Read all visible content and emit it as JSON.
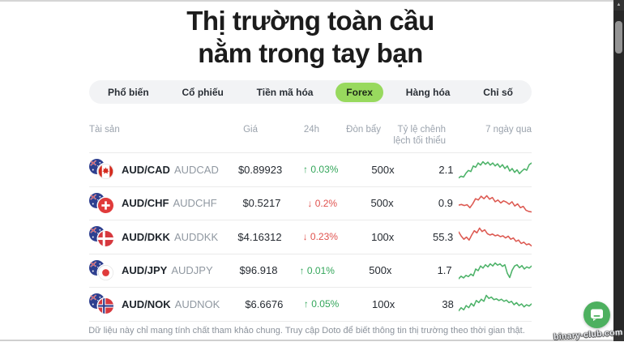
{
  "page": {
    "title_line1": "Thị trường toàn cầu",
    "title_line2": "nằm trong tay bạn",
    "footer": "Dữ liệu này chỉ mang tính chất tham khảo chung. Truy cập Doto để biết thông tin thị trường theo thời gian thật.",
    "watermark": "binary-club.com"
  },
  "tabs": {
    "items": [
      {
        "id": "pho-bien",
        "label": "Phổ biến",
        "active": false
      },
      {
        "id": "co-phieu",
        "label": "Cổ phiếu",
        "active": false
      },
      {
        "id": "tien-ma-hoa",
        "label": "Tiền mã hóa",
        "active": false
      },
      {
        "id": "forex",
        "label": "Forex",
        "active": true
      },
      {
        "id": "hang-hoa",
        "label": "Hàng hóa",
        "active": false
      },
      {
        "id": "chi-so",
        "label": "Chỉ số",
        "active": false
      }
    ]
  },
  "table": {
    "headers": {
      "asset": "Tài sản",
      "price": "Giá",
      "change": "24h",
      "leverage": "Đòn bẩy",
      "spread_line1": "Tỷ lệ chênh",
      "spread_line2": "lệch tối thiểu",
      "week": "7 ngày qua"
    },
    "rows": [
      {
        "pair": "AUD/CAD",
        "code": "AUDCAD",
        "price": "$0.89923",
        "change": "0.03%",
        "direction": "up",
        "leverage": "500x",
        "spread": "2.1",
        "flag_base": "aud",
        "flag_quote": "cad"
      },
      {
        "pair": "AUD/CHF",
        "code": "AUDCHF",
        "price": "$0.5217",
        "change": "0.2%",
        "direction": "down",
        "leverage": "500x",
        "spread": "0.9",
        "flag_base": "aud",
        "flag_quote": "chf"
      },
      {
        "pair": "AUD/DKK",
        "code": "AUDDKK",
        "price": "$4.16312",
        "change": "0.23%",
        "direction": "down",
        "leverage": "100x",
        "spread": "55.3",
        "flag_base": "aud",
        "flag_quote": "dkk"
      },
      {
        "pair": "AUD/JPY",
        "code": "AUDJPY",
        "price": "$96.918",
        "change": "0.01%",
        "direction": "up",
        "leverage": "500x",
        "spread": "1.7",
        "flag_base": "aud",
        "flag_quote": "jpy"
      },
      {
        "pair": "AUD/NOK",
        "code": "AUDNOK",
        "price": "$6.6676",
        "change": "0.05%",
        "direction": "up",
        "leverage": "100x",
        "spread": "38",
        "flag_base": "aud",
        "flag_quote": "nok"
      }
    ]
  },
  "icons": {
    "up_arrow": "↑",
    "down_arrow": "↓",
    "scroll_up_arrow": "▲",
    "scroll_down_arrow": "▼",
    "chat_icon": "chat-bubble",
    "flag_icons": [
      "flag-aud",
      "flag-cad",
      "flag-chf",
      "flag-dkk",
      "flag-jpy",
      "flag-nok"
    ]
  },
  "colors": {
    "up_text": "#33a65a",
    "down_text": "#e0524e",
    "accent_tab_green": "#98d95e",
    "chat_green": "#4db05f",
    "scrollbar_track": "#282828"
  },
  "chart_data": [
    {
      "name": "AUD/CAD 7-day sparkline",
      "type": "line",
      "color": "#4cb268",
      "trend": "up",
      "values": [
        10,
        18,
        14,
        32,
        45,
        40,
        66,
        60,
        80,
        70,
        86,
        74,
        84,
        70,
        80,
        66,
        76,
        60,
        72,
        54,
        66,
        42,
        54,
        36,
        48,
        30,
        42,
        52,
        46,
        72,
        80
      ]
    },
    {
      "name": "AUD/CHF 7-day sparkline",
      "type": "line",
      "color": "#dd5a52",
      "trend": "down",
      "values": [
        42,
        45,
        40,
        44,
        30,
        48,
        72,
        66,
        84,
        72,
        86,
        70,
        78,
        58,
        66,
        52,
        62,
        56,
        46,
        58,
        38,
        48,
        30,
        36,
        18,
        12,
        10
      ]
    },
    {
      "name": "AUD/DKK 7-day sparkline",
      "type": "line",
      "color": "#dd5a52",
      "trend": "down",
      "values": [
        72,
        52,
        38,
        48,
        34,
        58,
        78,
        68,
        90,
        74,
        82,
        64,
        58,
        62,
        54,
        58,
        50,
        54,
        44,
        52,
        38,
        44,
        28,
        34,
        18,
        24,
        12,
        16,
        6
      ]
    },
    {
      "name": "AUD/JPY 7-day sparkline",
      "type": "line",
      "color": "#4cb268",
      "trend": "up",
      "values": [
        12,
        24,
        16,
        28,
        22,
        34,
        26,
        58,
        50,
        72,
        62,
        78,
        68,
        82,
        72,
        86,
        76,
        82,
        70,
        78,
        38,
        18,
        52,
        72,
        78,
        64,
        74,
        58,
        68,
        62,
        72
      ]
    },
    {
      "name": "AUD/NOK 7-day sparkline",
      "type": "line",
      "color": "#4cb268",
      "trend": "up",
      "values": [
        18,
        32,
        22,
        42,
        32,
        52,
        40,
        66,
        56,
        72,
        62,
        90,
        76,
        82,
        70,
        74,
        66,
        72,
        62,
        68,
        56,
        62,
        46,
        56,
        42,
        50,
        36,
        46,
        40,
        50
      ]
    }
  ]
}
